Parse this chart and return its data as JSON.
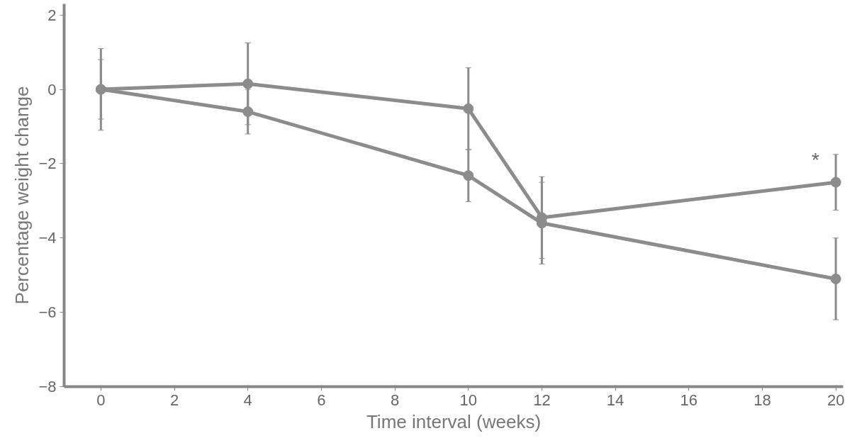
{
  "chart_data": {
    "type": "line",
    "xlabel": "Time interval (weeks)",
    "ylabel": "Percentage weight change",
    "x": [
      0,
      4,
      10,
      12,
      20
    ],
    "series": [
      {
        "color": "#8c8c8c",
        "values": [
          0,
          0.15,
          -0.52,
          -3.45,
          -2.5
        ],
        "errors": [
          1.1,
          1.1,
          1.1,
          1.1,
          0.75
        ]
      },
      {
        "color": "#8c8c8c",
        "values": [
          0,
          -0.6,
          -2.32,
          -3.6,
          -5.1
        ],
        "errors": [
          0.8,
          0.6,
          0.7,
          1.1,
          1.1
        ]
      }
    ],
    "xlim": [
      -1,
      20.2
    ],
    "ylim": [
      -8,
      2.3
    ],
    "xticks": [
      0,
      2,
      4,
      6,
      8,
      10,
      12,
      14,
      16,
      18,
      20
    ],
    "yticks": [
      -8,
      -6,
      -4,
      -2,
      0,
      2
    ],
    "grid": false,
    "marker": "circle",
    "line_style": "solid",
    "annotations": [
      "*"
    ]
  }
}
